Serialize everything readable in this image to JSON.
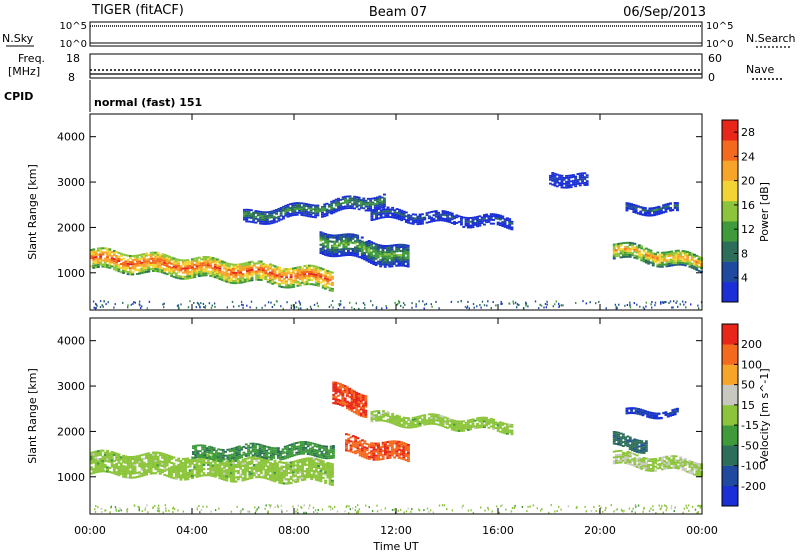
{
  "header": {
    "left": "TIGER (fitACF)",
    "center": "Beam 07",
    "right": "06/Sep/2013"
  },
  "panels": {
    "nsky": {
      "label": "N.Sky",
      "left_ticks": [
        "10^5",
        "10^0"
      ],
      "right_ticks": [
        "10^5",
        "10^0"
      ],
      "right_label": "N.Search"
    },
    "freq": {
      "label_line1": "Freq.",
      "label_line2": "[MHz]",
      "left_ticks": [
        "18",
        "8"
      ],
      "right_ticks": [
        "60",
        "0"
      ],
      "right_label": "Nave"
    },
    "cpid": {
      "label": "CPID",
      "text": "normal (fast) 151"
    }
  },
  "colors": {
    "power_scale": [
      "#1a2fd6",
      "#1f4aa0",
      "#2c6e5a",
      "#3f9a3c",
      "#8cc53b",
      "#f2d534",
      "#f6a52a",
      "#f36a1f",
      "#e8261a"
    ],
    "velocity_scale": [
      "#1a2fd6",
      "#1f4aa0",
      "#2c6e5a",
      "#3f9a3c",
      "#8cc53b",
      "#c8c8c0",
      "#f6a52a",
      "#f36a1f",
      "#e8261a"
    ]
  },
  "chart_data": [
    {
      "type": "heatmap",
      "name": "power",
      "ylabel": "Slant Range [km]",
      "xlabel": "Time UT",
      "y_ticks": [
        "1000",
        "2000",
        "3000",
        "4000"
      ],
      "ylim": [
        180,
        4500
      ],
      "x_ticks": [
        "00:00",
        "04:00",
        "08:00",
        "12:00",
        "16:00",
        "20:00",
        "00:00"
      ],
      "colorbar": {
        "label": "Power [dB]",
        "ticks": [
          "4",
          "8",
          "12",
          "16",
          "20",
          "24",
          "28"
        ],
        "range": [
          0,
          30
        ]
      },
      "features": [
        {
          "t_start": 0.0,
          "t_end": 9.5,
          "range_start": 1300,
          "range_end": 850,
          "width": 450,
          "value": 26
        },
        {
          "t_start": 9.0,
          "t_end": 12.5,
          "range_start": 1700,
          "range_end": 1300,
          "width": 500,
          "value": 14
        },
        {
          "t_start": 6.0,
          "t_end": 11.5,
          "range_start": 2200,
          "range_end": 2600,
          "width": 300,
          "value": 12
        },
        {
          "t_start": 11.0,
          "t_end": 16.5,
          "range_start": 2300,
          "range_end": 2100,
          "width": 250,
          "value": 6
        },
        {
          "t_start": 18.0,
          "t_end": 19.5,
          "range_start": 3100,
          "range_end": 3000,
          "width": 300,
          "value": 5
        },
        {
          "t_start": 20.5,
          "t_end": 24.0,
          "range_start": 1500,
          "range_end": 1200,
          "width": 350,
          "value": 22
        },
        {
          "t_start": 21.0,
          "t_end": 23.0,
          "range_start": 2400,
          "range_end": 2400,
          "width": 200,
          "value": 8
        }
      ]
    },
    {
      "type": "heatmap",
      "name": "velocity",
      "ylabel": "Slant Range [km]",
      "xlabel": "Time UT",
      "y_ticks": [
        "1000",
        "2000",
        "3000",
        "4000"
      ],
      "ylim": [
        180,
        4500
      ],
      "x_ticks": [
        "00:00",
        "04:00",
        "08:00",
        "12:00",
        "16:00",
        "20:00",
        "00:00"
      ],
      "colorbar": {
        "label": "Velocity [m s^-1]",
        "ticks": [
          "200",
          "100",
          "50",
          "15",
          "-15",
          "-50",
          "-100",
          "-200"
        ],
        "range": [
          -250,
          250
        ]
      },
      "features": [
        {
          "t_start": 0.0,
          "t_end": 9.5,
          "range_start": 1300,
          "range_end": 1100,
          "width": 500,
          "value": 0
        },
        {
          "t_start": 4.0,
          "t_end": 9.5,
          "range_start": 1500,
          "range_end": 1600,
          "width": 300,
          "value": -70
        },
        {
          "t_start": 10.0,
          "t_end": 12.5,
          "range_start": 1700,
          "range_end": 1500,
          "width": 400,
          "value": 180
        },
        {
          "t_start": 9.5,
          "t_end": 10.8,
          "range_start": 2800,
          "range_end": 2600,
          "width": 500,
          "value": 200
        },
        {
          "t_start": 11.0,
          "t_end": 16.5,
          "range_start": 2300,
          "range_end": 2100,
          "width": 250,
          "value": 0
        },
        {
          "t_start": 21.0,
          "t_end": 23.0,
          "range_start": 2400,
          "range_end": 2400,
          "width": 150,
          "value": -200
        },
        {
          "t_start": 20.5,
          "t_end": 24.0,
          "range_start": 1400,
          "range_end": 1200,
          "width": 300,
          "value": 20
        },
        {
          "t_start": 20.5,
          "t_end": 21.8,
          "range_start": 1800,
          "range_end": 1700,
          "width": 300,
          "value": -120
        }
      ]
    }
  ]
}
